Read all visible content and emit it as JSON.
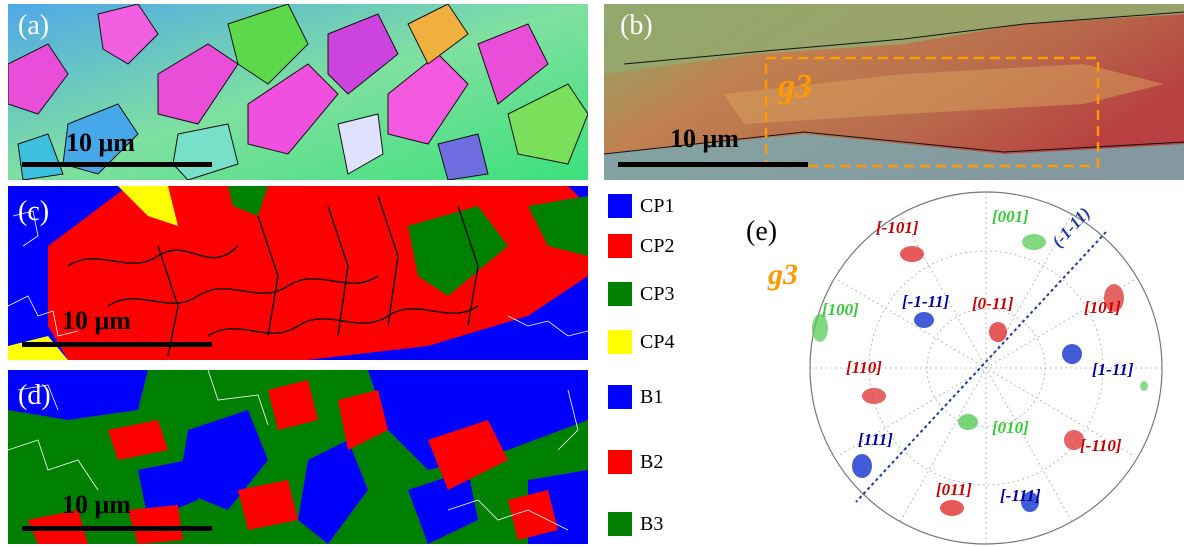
{
  "panels": {
    "a": {
      "label": "(a)",
      "scale": "10 μm"
    },
    "b": {
      "label": "(b)",
      "scale": "10 μm",
      "region_label": "g3"
    },
    "c": {
      "label": "(c)",
      "scale": "10 μm"
    },
    "d": {
      "label": "(d)",
      "scale": "10 μm"
    },
    "e": {
      "label": "(e)",
      "group_label": "g3"
    }
  },
  "legend_cp": [
    {
      "label": "CP1",
      "color": "#0000ff"
    },
    {
      "label": "CP2",
      "color": "#ff0000"
    },
    {
      "label": "CP3",
      "color": "#008000"
    },
    {
      "label": "CP4",
      "color": "#ffff00"
    }
  ],
  "legend_b": [
    {
      "label": "B1",
      "color": "#0000ff"
    },
    {
      "label": "B2",
      "color": "#ff0000"
    },
    {
      "label": "B3",
      "color": "#008000"
    }
  ],
  "pole_figure": {
    "trace_label": "(-1-11)",
    "poles": [
      {
        "label": "[-101]",
        "color": "#cc0000"
      },
      {
        "label": "[001]",
        "color": "#33cc33"
      },
      {
        "label": "[100]",
        "color": "#33cc33"
      },
      {
        "label": "[-1-11]",
        "color": "#0000aa"
      },
      {
        "label": "[0-11]",
        "color": "#cc0000"
      },
      {
        "label": "[101]",
        "color": "#cc0000"
      },
      {
        "label": "[110]",
        "color": "#cc0000"
      },
      {
        "label": "[1-11]",
        "color": "#0000aa"
      },
      {
        "label": "[010]",
        "color": "#33cc33"
      },
      {
        "label": "[-110]",
        "color": "#cc0000"
      },
      {
        "label": "[111]",
        "color": "#0000aa"
      },
      {
        "label": "[011]",
        "color": "#cc0000"
      },
      {
        "label": "[-111]",
        "color": "#0000aa"
      }
    ]
  }
}
